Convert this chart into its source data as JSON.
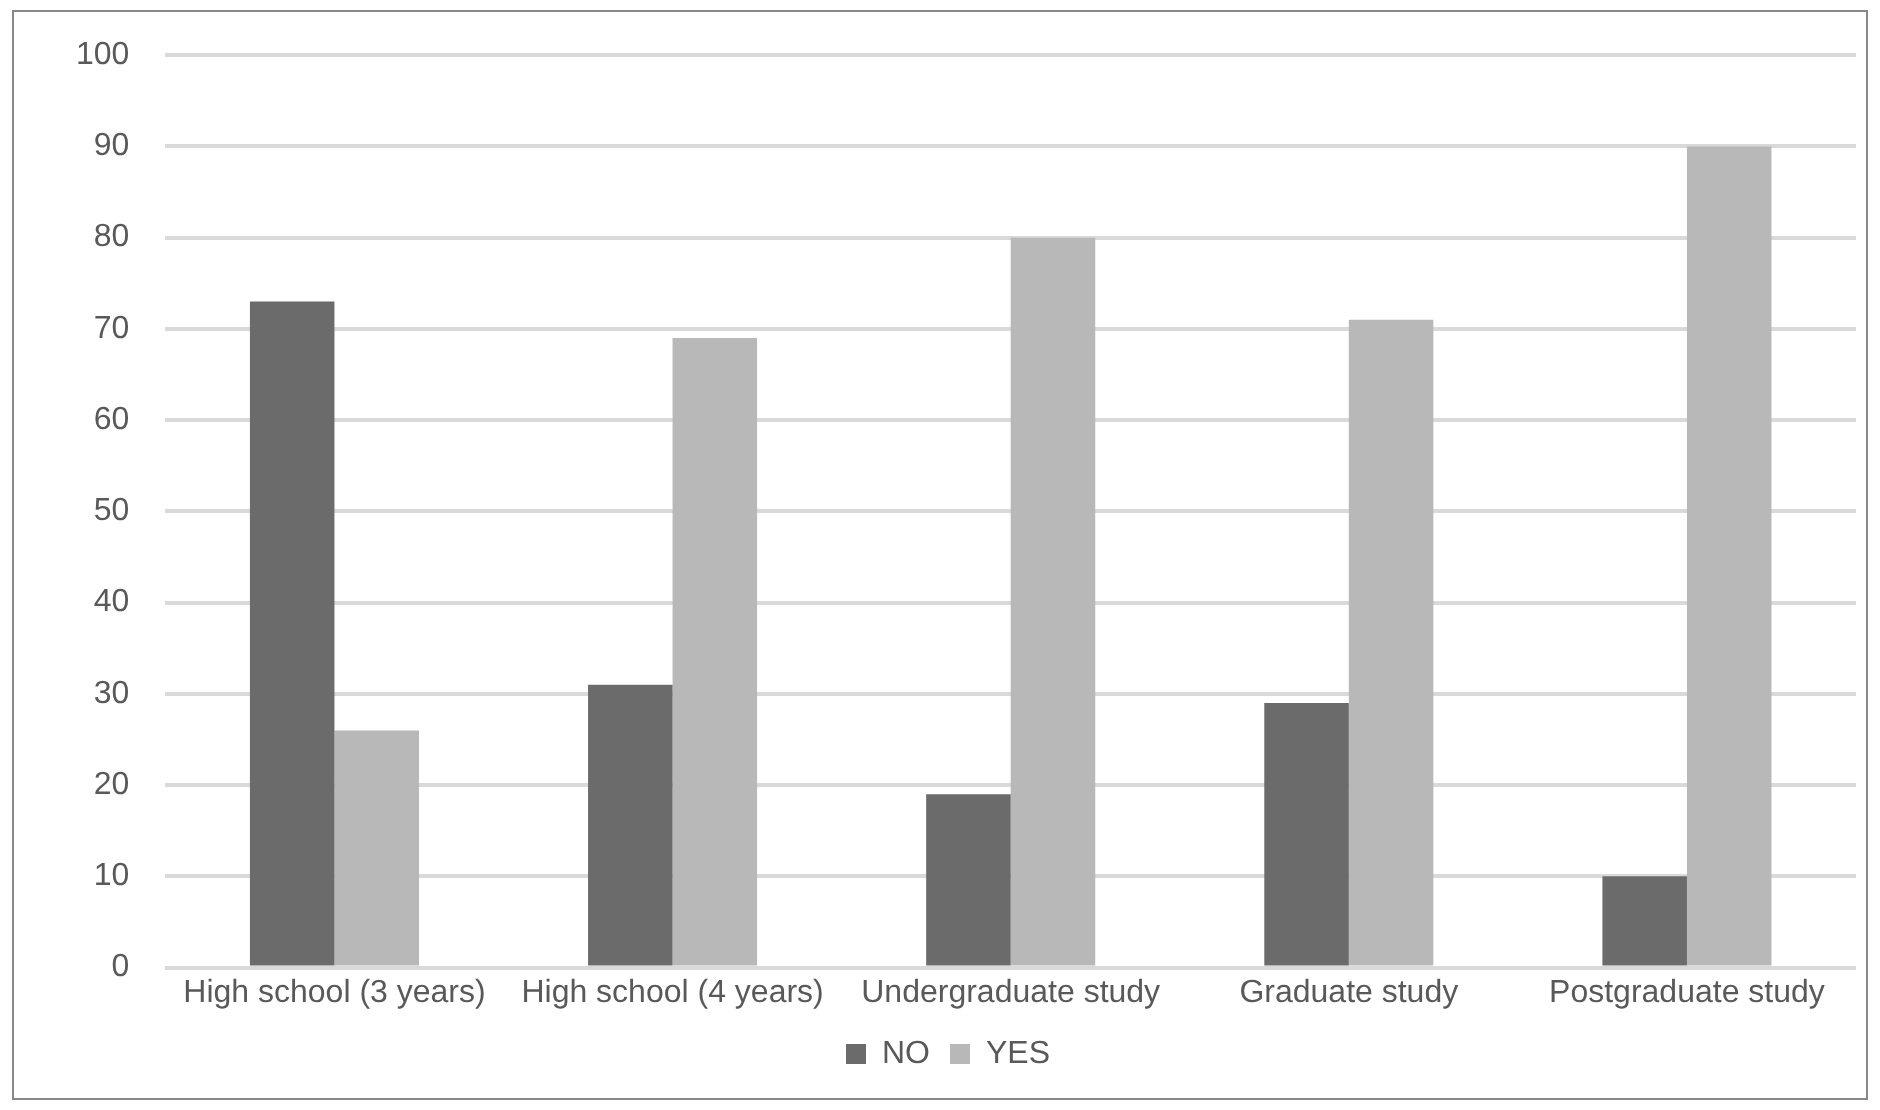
{
  "chart_data": {
    "type": "bar",
    "categories": [
      "High school (3 years)",
      "High school (4 years)",
      "Undergraduate study",
      "Graduate study",
      "Postgraduate study"
    ],
    "series": [
      {
        "name": "NO",
        "color": "#6b6b6b",
        "values": [
          73,
          31,
          19,
          29,
          10
        ]
      },
      {
        "name": "YES",
        "color": "#b8b8b8",
        "values": [
          26,
          69,
          80,
          71,
          90
        ]
      }
    ],
    "ylim": [
      0,
      100
    ],
    "yticks": [
      0,
      10,
      20,
      30,
      40,
      50,
      60,
      70,
      80,
      90,
      100
    ],
    "grid": "y",
    "legend": "bottom"
  }
}
